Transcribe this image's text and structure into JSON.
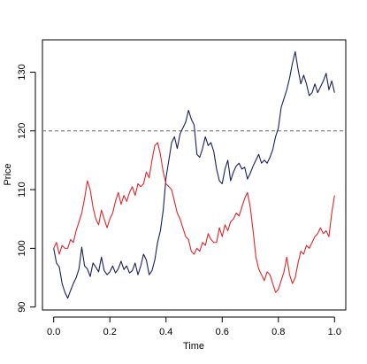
{
  "chart_data": {
    "type": "line",
    "title": "",
    "xlabel": "Time",
    "ylabel": "Price",
    "xlim": [
      -0.04,
      1.04
    ],
    "ylim": [
      89.5,
      135.5
    ],
    "xticks": [
      0.0,
      0.2,
      0.4,
      0.6,
      0.8,
      1.0
    ],
    "xtick_labels": [
      "0.0",
      "0.2",
      "0.4",
      "0.6",
      "0.8",
      "1.0"
    ],
    "yticks": [
      90,
      100,
      110,
      120,
      130
    ],
    "ytick_labels": [
      "90",
      "100",
      "110",
      "120",
      "130"
    ],
    "grid": false,
    "reference_line": {
      "y": 120,
      "style": "dashed",
      "color": "#888888"
    },
    "series": [
      {
        "color": "#1a1f5e",
        "x": [
          0.0,
          0.01,
          0.02,
          0.03,
          0.04,
          0.05,
          0.06,
          0.07,
          0.08,
          0.09,
          0.1,
          0.11,
          0.12,
          0.13,
          0.14,
          0.15,
          0.16,
          0.17,
          0.18,
          0.19,
          0.2,
          0.21,
          0.22,
          0.23,
          0.24,
          0.25,
          0.26,
          0.27,
          0.28,
          0.29,
          0.3,
          0.31,
          0.32,
          0.33,
          0.34,
          0.35,
          0.36,
          0.37,
          0.38,
          0.39,
          0.4,
          0.41,
          0.42,
          0.43,
          0.44,
          0.45,
          0.46,
          0.47,
          0.48,
          0.49,
          0.5,
          0.51,
          0.52,
          0.53,
          0.54,
          0.55,
          0.56,
          0.57,
          0.58,
          0.59,
          0.6,
          0.61,
          0.62,
          0.63,
          0.64,
          0.65,
          0.66,
          0.67,
          0.68,
          0.69,
          0.7,
          0.71,
          0.72,
          0.73,
          0.74,
          0.75,
          0.76,
          0.77,
          0.78,
          0.79,
          0.8,
          0.81,
          0.82,
          0.83,
          0.84,
          0.85,
          0.86,
          0.87,
          0.88,
          0.89,
          0.9,
          0.91,
          0.92,
          0.93,
          0.94,
          0.95,
          0.96,
          0.97,
          0.98,
          0.99,
          1.0
        ],
        "values": [
          100.0,
          97.5,
          96.8,
          94.0,
          92.5,
          91.5,
          92.8,
          94.0,
          95.0,
          96.5,
          100.2,
          97.0,
          96.5,
          95.2,
          97.5,
          96.8,
          96.0,
          98.5,
          96.2,
          95.5,
          96.0,
          97.0,
          95.8,
          96.5,
          97.8,
          96.4,
          97.0,
          95.8,
          96.2,
          97.5,
          95.5,
          97.0,
          99.0,
          98.0,
          95.5,
          96.2,
          98.0,
          101.0,
          103.0,
          106.5,
          112.0,
          115.0,
          118.0,
          119.0,
          117.0,
          119.5,
          120.5,
          121.5,
          123.5,
          122.0,
          121.0,
          116.0,
          115.5,
          117.0,
          119.0,
          117.5,
          118.0,
          116.5,
          113.5,
          111.5,
          111.0,
          113.5,
          115.0,
          111.5,
          113.0,
          114.0,
          114.5,
          113.5,
          113.8,
          111.8,
          112.8,
          114.0,
          115.0,
          116.0,
          114.5,
          115.0,
          114.5,
          115.5,
          116.8,
          119.0,
          120.5,
          124.0,
          125.5,
          127.0,
          129.0,
          131.5,
          133.5,
          130.5,
          128.0,
          129.5,
          128.0,
          126.0,
          126.5,
          128.0,
          126.5,
          127.5,
          128.5,
          129.8,
          127.0,
          128.5,
          126.5
        ]
      },
      {
        "color": "#e0262b",
        "x": [
          0.0,
          0.01,
          0.02,
          0.03,
          0.04,
          0.05,
          0.06,
          0.07,
          0.08,
          0.09,
          0.1,
          0.11,
          0.12,
          0.13,
          0.14,
          0.15,
          0.16,
          0.17,
          0.18,
          0.19,
          0.2,
          0.21,
          0.22,
          0.23,
          0.24,
          0.25,
          0.26,
          0.27,
          0.28,
          0.29,
          0.3,
          0.31,
          0.32,
          0.33,
          0.34,
          0.35,
          0.36,
          0.37,
          0.38,
          0.39,
          0.4,
          0.41,
          0.42,
          0.43,
          0.44,
          0.45,
          0.46,
          0.47,
          0.48,
          0.49,
          0.5,
          0.51,
          0.52,
          0.53,
          0.54,
          0.55,
          0.56,
          0.57,
          0.58,
          0.59,
          0.6,
          0.61,
          0.62,
          0.63,
          0.64,
          0.65,
          0.66,
          0.67,
          0.68,
          0.69,
          0.7,
          0.71,
          0.72,
          0.73,
          0.74,
          0.75,
          0.76,
          0.77,
          0.78,
          0.79,
          0.8,
          0.81,
          0.82,
          0.83,
          0.84,
          0.85,
          0.86,
          0.87,
          0.88,
          0.89,
          0.9,
          0.91,
          0.92,
          0.93,
          0.94,
          0.95,
          0.96,
          0.97,
          0.98,
          0.99,
          1.0
        ],
        "values": [
          100.0,
          101.0,
          99.0,
          100.5,
          100.0,
          100.0,
          101.5,
          101.0,
          103.0,
          104.5,
          106.0,
          108.5,
          111.5,
          110.0,
          107.0,
          105.0,
          104.0,
          106.5,
          105.0,
          103.5,
          105.0,
          106.0,
          108.0,
          109.5,
          107.5,
          109.0,
          108.0,
          109.5,
          110.5,
          109.0,
          111.0,
          110.5,
          111.0,
          113.0,
          112.0,
          115.0,
          117.5,
          118.0,
          116.0,
          113.0,
          111.0,
          110.5,
          110.0,
          108.0,
          106.0,
          105.0,
          103.5,
          102.0,
          101.5,
          99.5,
          99.0,
          100.0,
          99.5,
          101.0,
          100.5,
          102.5,
          101.5,
          101.0,
          101.0,
          103.5,
          102.0,
          104.0,
          103.0,
          104.5,
          105.0,
          106.0,
          105.5,
          107.0,
          108.5,
          109.5,
          107.0,
          103.0,
          98.5,
          96.5,
          95.5,
          94.5,
          96.0,
          95.5,
          94.0,
          92.5,
          93.0,
          94.5,
          96.0,
          98.5,
          95.5,
          94.0,
          95.0,
          97.5,
          99.5,
          99.0,
          100.5,
          100.0,
          101.0,
          102.0,
          102.5,
          103.5,
          102.5,
          103.0,
          102.0,
          106.0,
          109.0
        ]
      }
    ]
  }
}
